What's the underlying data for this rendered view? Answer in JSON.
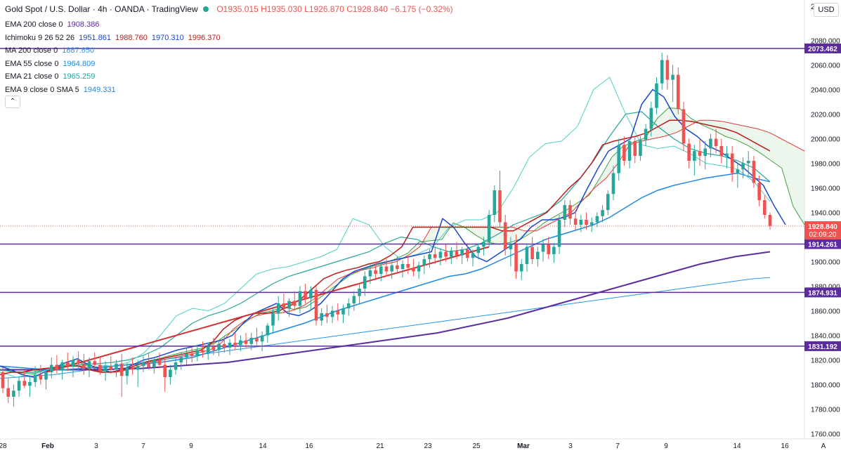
{
  "header": {
    "symbol": "Gold Spot / U.S. Dollar",
    "sep1": "·",
    "timeframe": "4h",
    "sep2": "·",
    "broker": "OANDA",
    "sep3": "·",
    "platform": "TradingView",
    "open": "O1935.015",
    "high": "H1935.030",
    "low": "L1926.870",
    "close": "C1928.840",
    "change": "−6.175 (−0.32%)"
  },
  "indicators": [
    {
      "label": "EMA 200 close 0",
      "values": [
        "1908.386"
      ],
      "colors": [
        "#5b2c9d"
      ]
    },
    {
      "label": "Ichimoku 9 26 52 26",
      "values": [
        "1951.861",
        "1988.760",
        "1970.310",
        "1996.370"
      ],
      "colors": [
        "#1848cc",
        "#b71c1c",
        "#1848cc",
        "#b71c1c"
      ]
    },
    {
      "label": "MA 200 close 0",
      "values": [
        "1887.650"
      ],
      "colors": [
        "#2196f3"
      ]
    },
    {
      "label": "EMA 55 close 0",
      "values": [
        "1964.809"
      ],
      "colors": [
        "#1e88e5"
      ]
    },
    {
      "label": "EMA 21 close 0",
      "values": [
        "1965.259"
      ],
      "colors": [
        "#26a69a"
      ]
    },
    {
      "label": "EMA 9 close 0 SMA 5",
      "values": [
        "1949.331"
      ],
      "colors": [
        "#1e88e5"
      ]
    }
  ],
  "collapse_glyph": "⌃",
  "currency_button": "USD",
  "price_axis_top_partial": "2",
  "colors": {
    "up": "#26a69a",
    "down": "#ef5350",
    "ema200": "#5b2c9d",
    "ma200": "#2196f3",
    "ema55": "#1e88e5",
    "ema21": "#26a69a",
    "ema9": "#1e88e5",
    "tenkan": "#1848cc",
    "kijun": "#b71c1c",
    "span_a": "#43a047",
    "span_b": "#e53935",
    "hline": "#5b2c9d",
    "trend": "#d32f2f"
  },
  "chart_data": {
    "type": "candlestick",
    "ylim": [
      1750,
      2095
    ],
    "y_ticks": [
      1760,
      1780,
      1800,
      1820,
      1840,
      1860,
      1880,
      1900,
      1920,
      1940,
      1960,
      1980,
      2000,
      2020,
      2040,
      2060,
      2080
    ],
    "x_ticks": [
      "28",
      "Feb",
      "3",
      "7",
      "9",
      "14",
      "16",
      "21",
      "23",
      "25",
      "Mar",
      "3",
      "7",
      "9",
      "14",
      "16"
    ],
    "candles": [
      [
        1810,
        1814,
        1793,
        1797
      ],
      [
        1797,
        1805,
        1785,
        1790
      ],
      [
        1790,
        1800,
        1782,
        1795
      ],
      [
        1795,
        1806,
        1790,
        1803
      ],
      [
        1803,
        1812,
        1797,
        1799
      ],
      [
        1799,
        1806,
        1790,
        1802
      ],
      [
        1802,
        1815,
        1798,
        1808
      ],
      [
        1808,
        1816,
        1800,
        1804
      ],
      [
        1804,
        1812,
        1796,
        1810
      ],
      [
        1810,
        1822,
        1805,
        1816
      ],
      [
        1816,
        1824,
        1809,
        1812
      ],
      [
        1812,
        1820,
        1804,
        1818
      ],
      [
        1818,
        1826,
        1811,
        1815
      ],
      [
        1815,
        1823,
        1806,
        1820
      ],
      [
        1820,
        1827,
        1812,
        1817
      ],
      [
        1817,
        1825,
        1808,
        1813
      ],
      [
        1813,
        1822,
        1806,
        1819
      ],
      [
        1819,
        1826,
        1813,
        1816
      ],
      [
        1816,
        1823,
        1808,
        1811
      ],
      [
        1811,
        1819,
        1803,
        1815
      ],
      [
        1815,
        1823,
        1809,
        1812
      ],
      [
        1812,
        1820,
        1806,
        1817
      ],
      [
        1817,
        1825,
        1790,
        1807
      ],
      [
        1807,
        1818,
        1800,
        1814
      ],
      [
        1814,
        1822,
        1808,
        1812
      ],
      [
        1812,
        1820,
        1798,
        1815
      ],
      [
        1815,
        1823,
        1810,
        1818
      ],
      [
        1818,
        1826,
        1812,
        1814
      ],
      [
        1814,
        1822,
        1809,
        1820
      ],
      [
        1820,
        1826,
        1813,
        1816
      ],
      [
        1816,
        1823,
        1794,
        1806
      ],
      [
        1806,
        1816,
        1800,
        1812
      ],
      [
        1812,
        1822,
        1808,
        1818
      ],
      [
        1818,
        1826,
        1812,
        1822
      ],
      [
        1822,
        1830,
        1816,
        1825
      ],
      [
        1825,
        1830,
        1818,
        1823
      ],
      [
        1823,
        1832,
        1819,
        1828
      ],
      [
        1828,
        1835,
        1822,
        1826
      ],
      [
        1826,
        1834,
        1820,
        1831
      ],
      [
        1831,
        1838,
        1824,
        1828
      ],
      [
        1828,
        1836,
        1823,
        1833
      ],
      [
        1833,
        1840,
        1826,
        1830
      ],
      [
        1830,
        1837,
        1824,
        1834
      ],
      [
        1834,
        1842,
        1828,
        1832
      ],
      [
        1832,
        1840,
        1827,
        1836
      ],
      [
        1836,
        1842,
        1830,
        1833
      ],
      [
        1833,
        1842,
        1828,
        1838
      ],
      [
        1838,
        1846,
        1832,
        1835
      ],
      [
        1835,
        1843,
        1827,
        1840
      ],
      [
        1840,
        1850,
        1834,
        1848
      ],
      [
        1848,
        1862,
        1842,
        1858
      ],
      [
        1858,
        1872,
        1852,
        1866
      ],
      [
        1866,
        1874,
        1858,
        1862
      ],
      [
        1862,
        1870,
        1855,
        1868
      ],
      [
        1868,
        1876,
        1860,
        1864
      ],
      [
        1864,
        1880,
        1858,
        1876
      ],
      [
        1876,
        1882,
        1866,
        1870
      ],
      [
        1870,
        1880,
        1860,
        1877
      ],
      [
        1877,
        1880,
        1848,
        1852
      ],
      [
        1852,
        1862,
        1848,
        1858
      ],
      [
        1858,
        1865,
        1850,
        1855
      ],
      [
        1855,
        1864,
        1850,
        1860
      ],
      [
        1860,
        1866,
        1852,
        1857
      ],
      [
        1857,
        1865,
        1850,
        1862
      ],
      [
        1862,
        1870,
        1856,
        1866
      ],
      [
        1866,
        1876,
        1860,
        1872
      ],
      [
        1872,
        1882,
        1866,
        1878
      ],
      [
        1878,
        1892,
        1872,
        1888
      ],
      [
        1888,
        1898,
        1882,
        1893
      ],
      [
        1893,
        1900,
        1885,
        1890
      ],
      [
        1890,
        1899,
        1884,
        1896
      ],
      [
        1896,
        1902,
        1888,
        1892
      ],
      [
        1892,
        1900,
        1886,
        1897
      ],
      [
        1897,
        1904,
        1890,
        1894
      ],
      [
        1894,
        1901,
        1887,
        1898
      ],
      [
        1898,
        1905,
        1890,
        1895
      ],
      [
        1895,
        1902,
        1888,
        1892
      ],
      [
        1892,
        1900,
        1886,
        1897
      ],
      [
        1897,
        1905,
        1890,
        1902
      ],
      [
        1902,
        1910,
        1895,
        1906
      ],
      [
        1906,
        1912,
        1898,
        1903
      ],
      [
        1903,
        1911,
        1897,
        1908
      ],
      [
        1908,
        1914,
        1900,
        1904
      ],
      [
        1904,
        1912,
        1898,
        1909
      ],
      [
        1909,
        1916,
        1902,
        1905
      ],
      [
        1905,
        1912,
        1898,
        1910
      ],
      [
        1910,
        1914,
        1900,
        1903
      ],
      [
        1903,
        1910,
        1896,
        1907
      ],
      [
        1907,
        1915,
        1902,
        1912
      ],
      [
        1912,
        1920,
        1905,
        1916
      ],
      [
        1916,
        1942,
        1912,
        1938
      ],
      [
        1938,
        1962,
        1932,
        1958
      ],
      [
        1958,
        1974,
        1928,
        1932
      ],
      [
        1932,
        1938,
        1905,
        1910
      ],
      [
        1910,
        1920,
        1896,
        1914
      ],
      [
        1914,
        1922,
        1886,
        1892
      ],
      [
        1892,
        1902,
        1885,
        1898
      ],
      [
        1898,
        1915,
        1892,
        1912
      ],
      [
        1912,
        1920,
        1898,
        1902
      ],
      [
        1902,
        1912,
        1896,
        1908
      ],
      [
        1908,
        1918,
        1900,
        1914
      ],
      [
        1914,
        1920,
        1902,
        1906
      ],
      [
        1906,
        1915,
        1899,
        1912
      ],
      [
        1912,
        1938,
        1906,
        1934
      ],
      [
        1934,
        1950,
        1928,
        1946
      ],
      [
        1946,
        1950,
        1930,
        1935
      ],
      [
        1935,
        1942,
        1925,
        1930
      ],
      [
        1930,
        1938,
        1924,
        1934
      ],
      [
        1934,
        1940,
        1926,
        1930
      ],
      [
        1930,
        1936,
        1924,
        1932
      ],
      [
        1932,
        1940,
        1928,
        1937
      ],
      [
        1937,
        1946,
        1932,
        1942
      ],
      [
        1942,
        1958,
        1938,
        1955
      ],
      [
        1955,
        1978,
        1950,
        1972
      ],
      [
        1972,
        2000,
        1966,
        1995
      ],
      [
        1995,
        2002,
        1978,
        1982
      ],
      [
        1982,
        2000,
        1976,
        1998
      ],
      [
        1998,
        2002,
        1980,
        1986
      ],
      [
        1986,
        2002,
        1982,
        1999
      ],
      [
        1999,
        2012,
        1994,
        2008
      ],
      [
        2008,
        2030,
        2002,
        2025
      ],
      [
        2025,
        2050,
        2020,
        2045
      ],
      [
        2045,
        2070,
        2040,
        2064
      ],
      [
        2064,
        2068,
        2040,
        2048
      ],
      [
        2048,
        2060,
        2030,
        2052
      ],
      [
        2052,
        2058,
        2020,
        2024
      ],
      [
        2024,
        2030,
        1990,
        1996
      ],
      [
        1996,
        2000,
        1976,
        1982
      ],
      [
        1982,
        1995,
        1970,
        1990
      ],
      [
        1990,
        2000,
        1978,
        1986
      ],
      [
        1986,
        1998,
        1975,
        1992
      ],
      [
        1992,
        2004,
        1985,
        2000
      ],
      [
        2000,
        2008,
        1988,
        1994
      ],
      [
        1994,
        2000,
        1980,
        1986
      ],
      [
        1986,
        1994,
        1976,
        1988
      ],
      [
        1988,
        1994,
        1965,
        1972
      ],
      [
        1972,
        1980,
        1960,
        1975
      ],
      [
        1975,
        1985,
        1968,
        1980
      ],
      [
        1980,
        1990,
        1970,
        1982
      ],
      [
        1982,
        1986,
        1960,
        1964
      ],
      [
        1964,
        1970,
        1945,
        1950
      ],
      [
        1950,
        1954,
        1935,
        1938
      ],
      [
        1938,
        1940,
        1926,
        1929
      ]
    ],
    "tenkan": [
      1815,
      1812,
      1808,
      1806,
      1810,
      1814,
      1818,
      1821,
      1816,
      1813,
      1810,
      1812,
      1816,
      1820,
      1822,
      1825,
      1828,
      1830,
      1832,
      1834,
      1836,
      1840,
      1850,
      1858,
      1862,
      1866,
      1858,
      1856,
      1860,
      1866,
      1876,
      1886,
      1892,
      1895,
      1898,
      1900,
      1902,
      1904,
      1906,
      1908,
      1935,
      1928,
      1915,
      1904,
      1900,
      1906,
      1912,
      1918,
      1928,
      1934,
      1934,
      1936,
      1940,
      1958,
      1975,
      1990,
      1995,
      2000,
      2028,
      2040,
      2034,
      2018,
      2008,
      2002,
      1994,
      1990,
      1984,
      1978,
      1970,
      1962,
      1945,
      1930
    ],
    "kijun": [
      1808,
      1810,
      1810,
      1812,
      1813,
      1814,
      1815,
      1815,
      1812,
      1810,
      1810,
      1812,
      1815,
      1818,
      1820,
      1822,
      1824,
      1826,
      1828,
      1834,
      1845,
      1852,
      1856,
      1858,
      1858,
      1860,
      1864,
      1870,
      1878,
      1886,
      1890,
      1893,
      1895,
      1898,
      1900,
      1905,
      1912,
      1928,
      1928,
      1928,
      1928,
      1928,
      1928,
      1928,
      1928,
      1925,
      1925,
      1930,
      1935,
      1940,
      1950,
      1960,
      1968,
      1980,
      1995,
      1998,
      2000,
      2002,
      2005,
      2010,
      2015,
      2015,
      2014,
      2012,
      2010,
      2008,
      2005,
      2000,
      1995,
      1990
    ],
    "ema200": [
      1812,
      1812,
      1812,
      1812,
      1812,
      1812,
      1812,
      1813,
      1813,
      1814,
      1815,
      1816,
      1817,
      1818,
      1820,
      1822,
      1824,
      1826,
      1828,
      1830,
      1832,
      1834,
      1836,
      1838,
      1840,
      1842,
      1845,
      1848,
      1851,
      1854,
      1858,
      1862,
      1866,
      1870,
      1874,
      1878,
      1882,
      1886,
      1890,
      1894,
      1898,
      1901,
      1904,
      1906,
      1908
    ],
    "ma200": [
      1805,
      1806,
      1807,
      1808,
      1810,
      1812,
      1814,
      1816,
      1818,
      1820,
      1822,
      1824,
      1826,
      1828,
      1830,
      1832,
      1834,
      1836,
      1838,
      1840,
      1842,
      1844,
      1846,
      1848,
      1850,
      1852,
      1854,
      1856,
      1858,
      1860,
      1862,
      1864,
      1866,
      1868,
      1870,
      1872,
      1874,
      1876,
      1878,
      1880,
      1882,
      1884,
      1886,
      1887
    ],
    "ema55": [
      1815,
      1814,
      1813,
      1812,
      1812,
      1813,
      1814,
      1815,
      1816,
      1817,
      1818,
      1820,
      1822,
      1826,
      1830,
      1834,
      1838,
      1842,
      1846,
      1850,
      1855,
      1860,
      1864,
      1868,
      1872,
      1876,
      1880,
      1884,
      1888,
      1890,
      1894,
      1900,
      1906,
      1912,
      1918,
      1922,
      1926,
      1930,
      1936,
      1944,
      1952,
      1958,
      1962,
      1965,
      1968,
      1970,
      1972,
      1968,
      1965
    ],
    "ema21": [
      1812,
      1810,
      1810,
      1812,
      1814,
      1816,
      1817,
      1818,
      1820,
      1824,
      1830,
      1840,
      1850,
      1856,
      1860,
      1866,
      1874,
      1882,
      1888,
      1892,
      1896,
      1900,
      1904,
      1908,
      1915,
      1920,
      1918,
      1912,
      1908,
      1910,
      1915,
      1922,
      1930,
      1935,
      1940,
      1950,
      1965,
      1982,
      2002,
      2020,
      2022,
      2010,
      2000,
      1992,
      1988,
      1986,
      1982,
      1976,
      1965
    ],
    "ema9": [
      1810,
      1806,
      1808,
      1812,
      1816,
      1818,
      1816,
      1815,
      1818,
      1826,
      1840,
      1856,
      1862,
      1860,
      1866,
      1878,
      1890,
      1894,
      1896,
      1900,
      1904,
      1910,
      1935,
      1930,
      1912,
      1902,
      1906,
      1912,
      1928,
      1934,
      1934,
      1940,
      1960,
      1985,
      1996,
      1998,
      2010,
      2040,
      2050,
      2020,
      1995,
      1992,
      1994,
      1988,
      1980,
      1978,
      1975,
      1965,
      1949
    ],
    "hlines": [
      2073.462,
      1914.261,
      1874.931,
      1831.192
    ],
    "hline_labels": [
      "2073.462",
      "1914.261",
      "1874.931",
      "1831.192"
    ],
    "last_price": "1928.840",
    "countdown": "02:09:20",
    "trendline": [
      [
        8,
        1810
      ],
      [
        90,
        1912
      ]
    ]
  }
}
